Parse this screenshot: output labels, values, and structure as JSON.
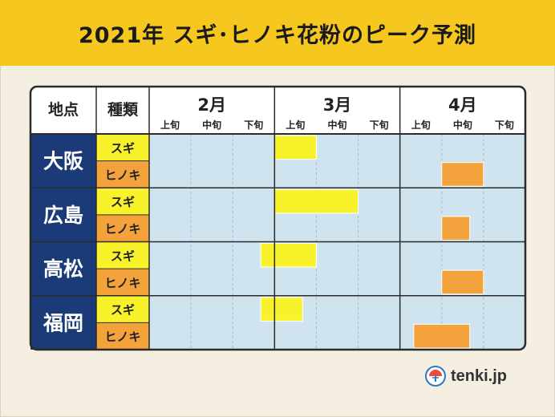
{
  "title": "2021年 スギ･ヒノキ花粉のピーク予測",
  "brand": "tenki.jp",
  "chart_data": {
    "type": "gantt",
    "headers": {
      "location": "地点",
      "type": "種類"
    },
    "months": [
      "2月",
      "3月",
      "4月"
    ],
    "periods": [
      "上旬",
      "中旬",
      "下旬"
    ],
    "locations": [
      {
        "name": "大阪",
        "rows": [
          {
            "type": "スギ",
            "start": 3,
            "end": 4
          },
          {
            "type": "ヒノキ",
            "start": 7,
            "end": 8
          }
        ]
      },
      {
        "name": "広島",
        "rows": [
          {
            "type": "スギ",
            "start": 3,
            "end": 5
          },
          {
            "type": "ヒノキ",
            "start": 7,
            "end": 7.67
          }
        ]
      },
      {
        "name": "高松",
        "rows": [
          {
            "type": "スギ",
            "start": 2.67,
            "end": 4
          },
          {
            "type": "ヒノキ",
            "start": 7,
            "end": 8
          }
        ]
      },
      {
        "name": "福岡",
        "rows": [
          {
            "type": "スギ",
            "start": 2.67,
            "end": 3.67
          },
          {
            "type": "ヒノキ",
            "start": 6.33,
            "end": 7.67
          }
        ]
      }
    ],
    "colors": {
      "スギ": "#f7f22a",
      "ヒノキ": "#f4a23b",
      "location_bg": "#1b3a78",
      "grid_bg": "#cfe4ef"
    }
  }
}
